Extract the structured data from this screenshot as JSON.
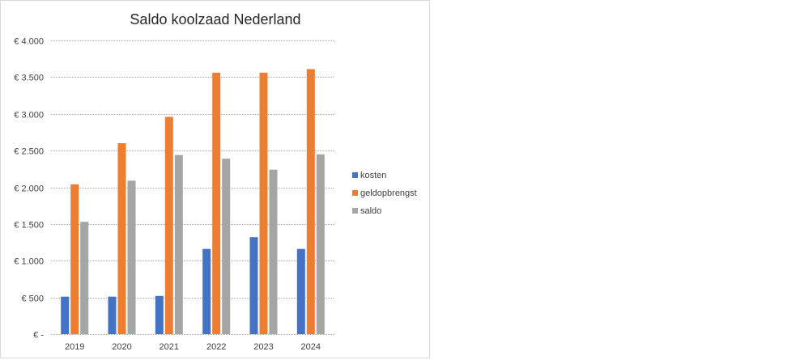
{
  "chart_data": {
    "type": "bar",
    "title": "Saldo koolzaad Nederland",
    "categories": [
      "2019",
      "2020",
      "2021",
      "2022",
      "2023",
      "2024"
    ],
    "series": [
      {
        "name": "kosten",
        "color": "#4472c4",
        "values": [
          510,
          510,
          520,
          1160,
          1320,
          1160
        ]
      },
      {
        "name": "geldopbrengst",
        "color": "#ed7d31",
        "values": [
          2040,
          2600,
          2960,
          3560,
          3560,
          3610
        ]
      },
      {
        "name": "saldo",
        "color": "#a5a5a5",
        "values": [
          1530,
          2090,
          2440,
          2390,
          2240,
          2450
        ]
      }
    ],
    "ylim": [
      0,
      4000
    ],
    "yticks": [
      0,
      500,
      1000,
      1500,
      2000,
      2500,
      3000,
      3500,
      4000
    ],
    "ytick_labels": [
      "€ -",
      "€ 500",
      "€ 1.000",
      "€ 1.500",
      "€ 2.000",
      "€ 2.500",
      "€ 3.000",
      "€ 3.500",
      "€ 4.000"
    ],
    "grid": true,
    "legend_position": "right"
  }
}
